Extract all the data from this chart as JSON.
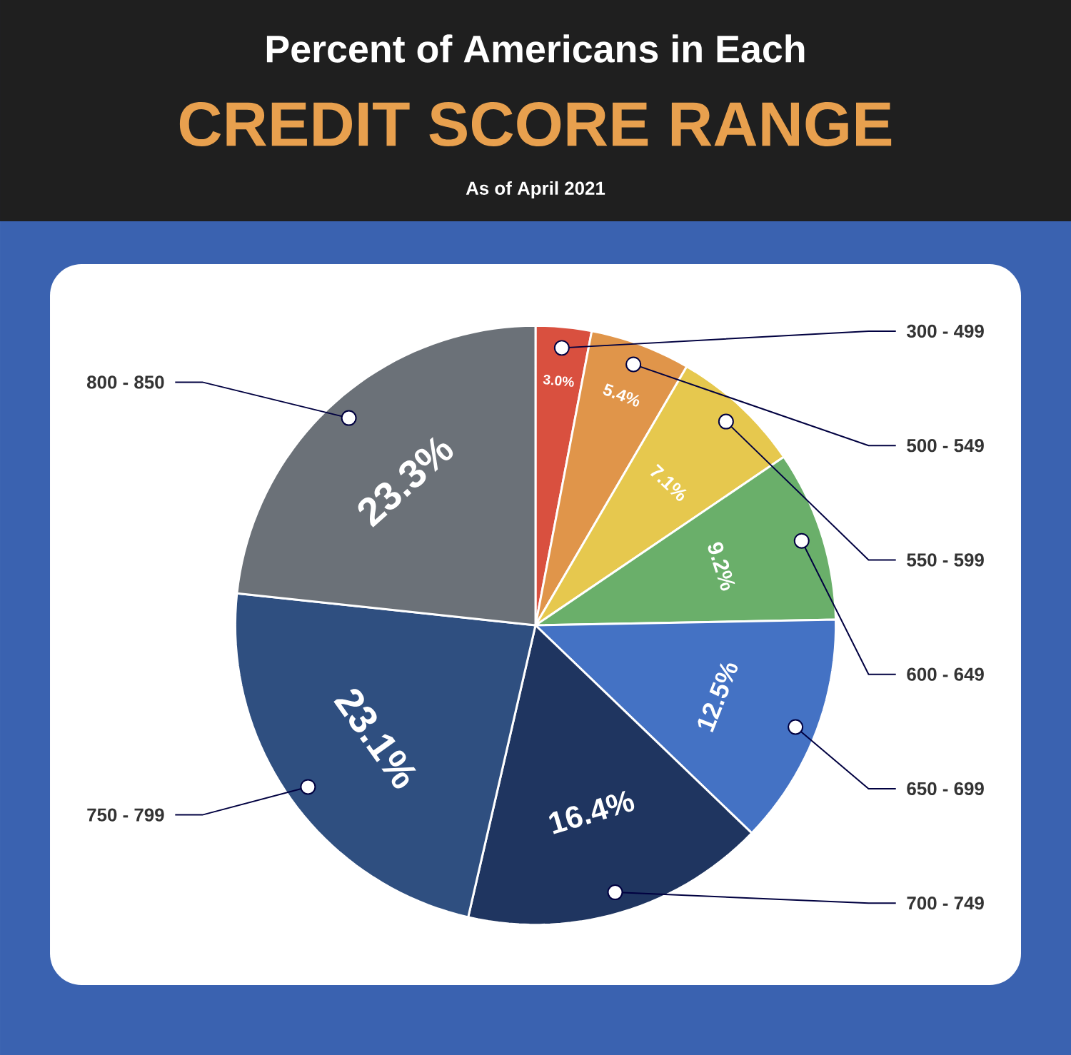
{
  "chart_data": {
    "type": "pie",
    "title": "Percent of Americans in Each",
    "subtitle": "CREDIT SCORE RANGE",
    "annotations": [
      "As of April 2021"
    ],
    "categories": [
      "300 - 499",
      "500 - 549",
      "550 - 599",
      "600 - 649",
      "650 - 699",
      "700 - 749",
      "750 - 799",
      "800 - 850"
    ],
    "values": [
      3.0,
      5.4,
      7.1,
      9.2,
      12.5,
      16.4,
      23.1,
      23.3
    ],
    "value_labels": [
      "3.0%",
      "5.4%",
      "7.1%",
      "9.2%",
      "12.5%",
      "16.4%",
      "23.1%",
      "23.3%"
    ],
    "colors": [
      "#d9503f",
      "#e0954a",
      "#e6c84e",
      "#6aaf6a",
      "#4472c4",
      "#1f3560",
      "#2f4f80",
      "#6b7178"
    ]
  }
}
